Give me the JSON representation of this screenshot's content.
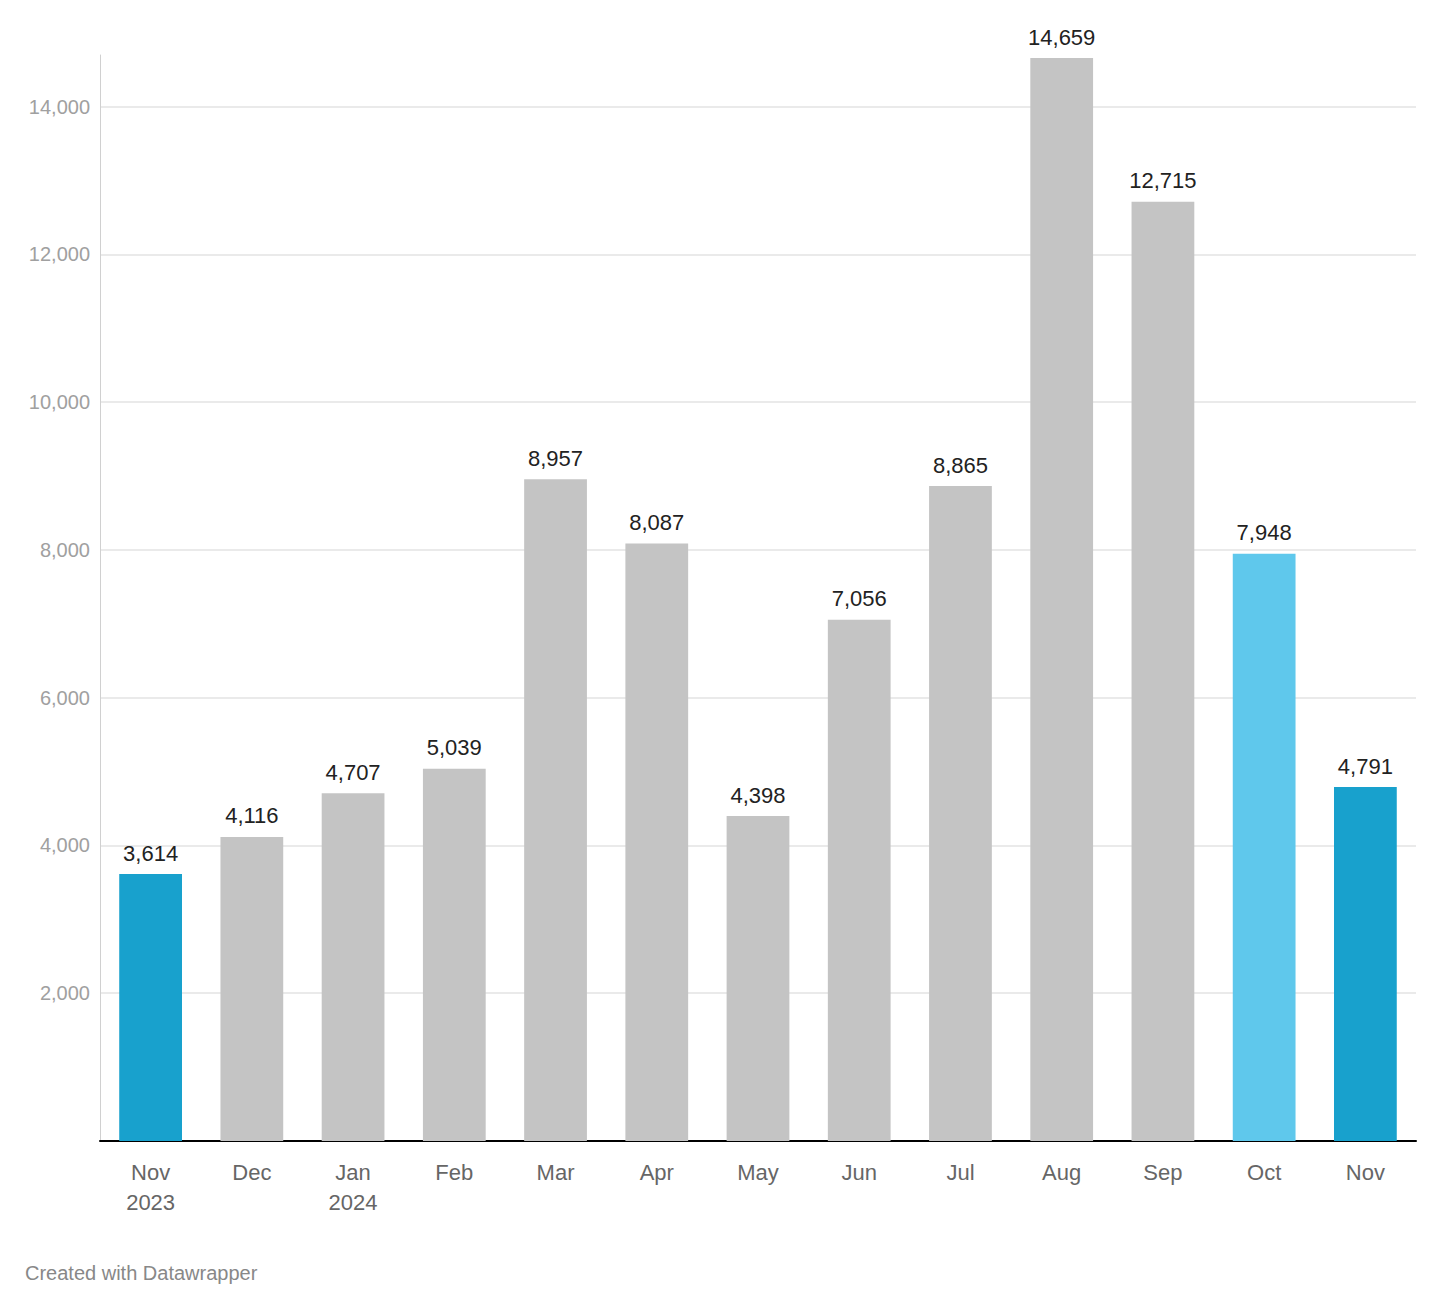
{
  "chart_data": {
    "type": "bar",
    "categories": [
      "Nov\n2023",
      "Dec",
      "Jan\n2024",
      "Feb",
      "Mar",
      "Apr",
      "May",
      "Jun",
      "Jul",
      "Aug",
      "Sep",
      "Oct",
      "Nov"
    ],
    "values": [
      3614,
      4116,
      4707,
      5039,
      8957,
      8087,
      4398,
      7056,
      8865,
      14659,
      12715,
      7948,
      4791
    ],
    "value_labels": [
      "3,614",
      "4,116",
      "4,707",
      "5,039",
      "8,957",
      "8,087",
      "4,398",
      "7,056",
      "8,865",
      "14,659",
      "12,715",
      "7,948",
      "4,791"
    ],
    "colors": [
      "#18a1cd",
      "#c4c4c4",
      "#c4c4c4",
      "#c4c4c4",
      "#c4c4c4",
      "#c4c4c4",
      "#c4c4c4",
      "#c4c4c4",
      "#c4c4c4",
      "#c4c4c4",
      "#c4c4c4",
      "#5fc8ec",
      "#18a1cd"
    ],
    "ylim": [
      0,
      14700
    ],
    "yticks": [
      {
        "value": 2000,
        "label": "2,000"
      },
      {
        "value": 4000,
        "label": "4,000"
      },
      {
        "value": 6000,
        "label": "6,000"
      },
      {
        "value": 8000,
        "label": "8,000"
      },
      {
        "value": 10000,
        "label": "10,000"
      },
      {
        "value": 12000,
        "label": "12,000"
      },
      {
        "value": 14000,
        "label": "14,000"
      }
    ],
    "grid": true,
    "data_labels": true,
    "footer": "Created with Datawrapper"
  }
}
